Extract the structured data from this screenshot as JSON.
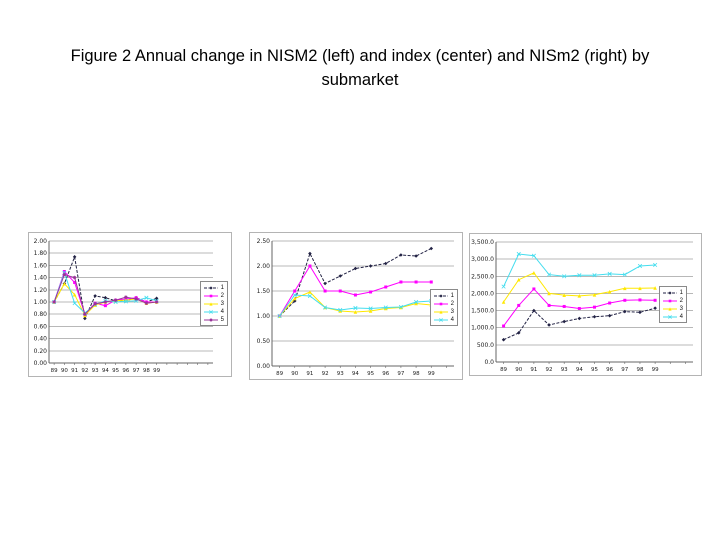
{
  "slide": {
    "title": "Figure 2 Annual change in NISM2 (left) and index (center) and NISm2 (right) by submarket"
  },
  "colors": {
    "series1": "#222244",
    "series2": "#FF00FF",
    "series3": "#FFE800",
    "series4": "#44DDEE",
    "series5": "#993399",
    "gridline": "#b8b8b8",
    "axis": "#666666"
  },
  "chart_data": [
    {
      "id": "nism2-annual-change-left",
      "type": "line",
      "title": "",
      "xlabel": "",
      "ylabel": "",
      "x_labels": [
        "89",
        "90",
        "91",
        "92",
        "93",
        "94",
        "95",
        "96",
        "97",
        "98",
        "99"
      ],
      "y_ticks": [
        "2.00",
        "1.80",
        "1.60",
        "1.40",
        "1.20",
        "1.00",
        "0.80",
        "0.60",
        "0.40",
        "0.20",
        "0.00"
      ],
      "ymin": 0,
      "ymax": 2.0,
      "grid": true,
      "legend_position": "right",
      "legend": [
        "1",
        "2",
        "3",
        "4",
        "5"
      ],
      "series": [
        {
          "name": "1",
          "color": "#222244",
          "dash": true,
          "marker": "diamond",
          "values": [
            1.0,
            1.3,
            1.74,
            0.73,
            1.1,
            1.07,
            1.02,
            1.02,
            1.07,
            1.0,
            1.06
          ]
        },
        {
          "name": "2",
          "color": "#FF00FF",
          "dash": false,
          "marker": "square",
          "values": [
            1.0,
            1.5,
            1.32,
            0.8,
            0.98,
            0.94,
            1.03,
            1.05,
            1.07,
            1.0,
            1.0
          ]
        },
        {
          "name": "3",
          "color": "#FFE800",
          "dash": false,
          "marker": "triangle",
          "values": [
            1.0,
            1.3,
            1.12,
            0.78,
            0.95,
            1.0,
            1.02,
            1.03,
            1.05,
            0.98,
            1.0
          ]
        },
        {
          "name": "4",
          "color": "#44DDEE",
          "dash": false,
          "marker": "x",
          "values": [
            1.0,
            1.48,
            0.98,
            0.82,
            0.96,
            1.02,
            1.0,
            1.01,
            1.02,
            1.07,
            1.02
          ]
        },
        {
          "name": "5",
          "color": "#993399",
          "dash": false,
          "marker": "star",
          "values": [
            1.0,
            1.45,
            1.4,
            0.8,
            0.97,
            1.0,
            1.03,
            1.08,
            1.05,
            0.98,
            1.0
          ]
        }
      ]
    },
    {
      "id": "index-center",
      "type": "line",
      "title": "",
      "xlabel": "",
      "ylabel": "",
      "x_labels": [
        "89",
        "90",
        "91",
        "92",
        "93",
        "94",
        "95",
        "96",
        "97",
        "98",
        "99"
      ],
      "y_ticks": [
        "2.50",
        "2.00",
        "1.50",
        "1.00",
        "0.50",
        "0.00"
      ],
      "ymin": 0,
      "ymax": 2.5,
      "grid": true,
      "legend_position": "right",
      "legend": [
        "1",
        "2",
        "3",
        "4"
      ],
      "series": [
        {
          "name": "1",
          "color": "#222244",
          "dash": true,
          "marker": "diamond",
          "values": [
            1.0,
            1.3,
            2.25,
            1.65,
            1.8,
            1.95,
            2.0,
            2.05,
            2.22,
            2.2,
            2.35
          ]
        },
        {
          "name": "2",
          "color": "#FF00FF",
          "dash": false,
          "marker": "square",
          "values": [
            1.0,
            1.5,
            2.0,
            1.5,
            1.5,
            1.42,
            1.48,
            1.58,
            1.68,
            1.68,
            1.68
          ]
        },
        {
          "name": "3",
          "color": "#FFE800",
          "dash": false,
          "marker": "triangle",
          "values": [
            1.0,
            1.35,
            1.48,
            1.17,
            1.1,
            1.08,
            1.1,
            1.15,
            1.17,
            1.25,
            1.22
          ]
        },
        {
          "name": "4",
          "color": "#44DDEE",
          "dash": false,
          "marker": "x",
          "values": [
            1.0,
            1.42,
            1.4,
            1.17,
            1.12,
            1.16,
            1.15,
            1.17,
            1.18,
            1.28,
            1.3
          ]
        }
      ]
    },
    {
      "id": "nism2-right",
      "type": "line",
      "title": "",
      "xlabel": "",
      "ylabel": "",
      "x_labels": [
        "89",
        "90",
        "91",
        "92",
        "93",
        "94",
        "95",
        "96",
        "97",
        "98",
        "99"
      ],
      "y_ticks": [
        "3,500.0",
        "3,000.0",
        "2,500.0",
        "2,000.0",
        "1,500.0",
        "1,000.0",
        "500.0",
        "0.0"
      ],
      "ymin": 0,
      "ymax": 3500,
      "grid": true,
      "legend_position": "right",
      "legend": [
        "1",
        "2",
        "3",
        "4"
      ],
      "series": [
        {
          "name": "1",
          "color": "#222244",
          "dash": true,
          "marker": "diamond",
          "values": [
            650,
            850,
            1500,
            1080,
            1180,
            1270,
            1320,
            1350,
            1470,
            1450,
            1570
          ]
        },
        {
          "name": "2",
          "color": "#FF00FF",
          "dash": false,
          "marker": "square",
          "values": [
            1050,
            1650,
            2130,
            1650,
            1620,
            1560,
            1600,
            1720,
            1800,
            1810,
            1800
          ]
        },
        {
          "name": "3",
          "color": "#FFE800",
          "dash": false,
          "marker": "triangle",
          "values": [
            1750,
            2400,
            2600,
            2000,
            1950,
            1930,
            1960,
            2050,
            2150,
            2150,
            2160
          ]
        },
        {
          "name": "4",
          "color": "#44DDEE",
          "dash": false,
          "marker": "x",
          "values": [
            2200,
            3150,
            3100,
            2550,
            2500,
            2530,
            2530,
            2570,
            2550,
            2800,
            2830
          ]
        }
      ]
    }
  ]
}
